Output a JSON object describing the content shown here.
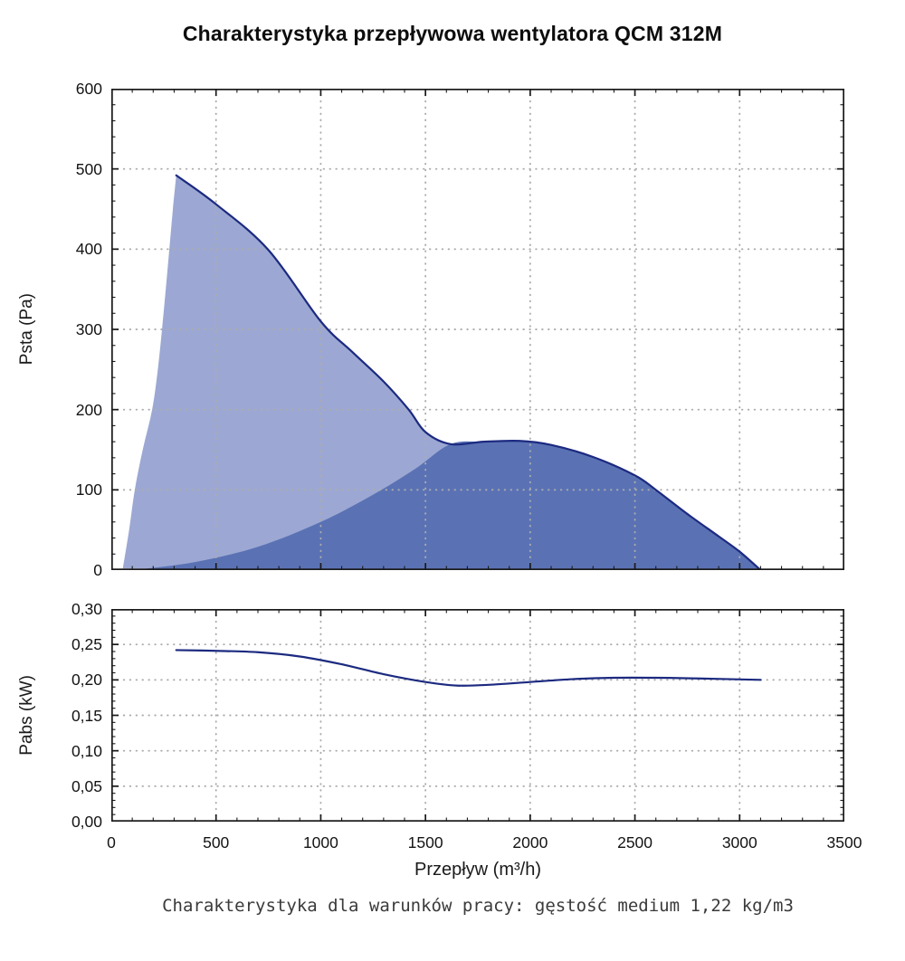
{
  "title": "Charakterystyka przepływowa wentylatora QCM 312M",
  "xlabel": "Przepływ (m³/h)",
  "caption": "Charakterystyka dla warunków pracy: gęstość medium 1,22 kg/m3",
  "style": {
    "area_light": "#9ca8d3",
    "area_dark": "#5a72b4",
    "curve": "#1c2a80",
    "grid": "#acacac",
    "axis": "#1a1a1a",
    "caption_color": "#3a3a3a"
  },
  "chart_data": [
    {
      "name": "psta-vs-flow",
      "type": "area",
      "ylabel": "Psta (Pa)",
      "xlim": [
        0,
        3500
      ],
      "ylim": [
        0,
        600
      ],
      "xticks": [
        0,
        500,
        1000,
        1500,
        2000,
        2500,
        3000,
        3500
      ],
      "xtick_labels": [
        "0",
        "500",
        "1000",
        "1500",
        "2000",
        "2500",
        "3000",
        "3500"
      ],
      "yticks": [
        0,
        100,
        200,
        300,
        400,
        500,
        600
      ],
      "ytick_labels": [
        "0",
        "100",
        "200",
        "300",
        "400",
        "500",
        "600"
      ],
      "x_minor_step": 100,
      "y_minor_step": 20,
      "grid": "dotted",
      "legend": "none",
      "saddle_index": 8,
      "series": [
        {
          "name": "fan-curve-psta",
          "role": "line",
          "points": [
            [
              310,
              492
            ],
            [
              500,
              456
            ],
            [
              750,
              399
            ],
            [
              1000,
              310
            ],
            [
              1150,
              272
            ],
            [
              1300,
              235
            ],
            [
              1420,
              200
            ],
            [
              1500,
              172
            ],
            [
              1620,
              157
            ],
            [
              1780,
              160
            ],
            [
              1950,
              161
            ],
            [
              2100,
              156
            ],
            [
              2300,
              141
            ],
            [
              2500,
              118
            ],
            [
              2600,
              100
            ],
            [
              2750,
              70
            ],
            [
              2900,
              42
            ],
            [
              3000,
              23
            ],
            [
              3100,
              0
            ]
          ]
        },
        {
          "name": "surge-boundary",
          "role": "area-boundary-light",
          "points": [
            [
              55,
              2
            ],
            [
              85,
              50
            ],
            [
              112,
              100
            ],
            [
              150,
              150
            ],
            [
              195,
              200
            ],
            [
              222,
              250
            ],
            [
              242,
              300
            ],
            [
              260,
              350
            ],
            [
              277,
              400
            ],
            [
              294,
              450
            ],
            [
              310,
              492
            ]
          ]
        },
        {
          "name": "system-resistance-parabola",
          "role": "area-boundary-dark",
          "points": [
            [
              140,
              1
            ],
            [
              400,
              10
            ],
            [
              700,
              29
            ],
            [
              1000,
              60
            ],
            [
              1250,
              94
            ],
            [
              1450,
              126
            ],
            [
              1620,
              157
            ]
          ]
        }
      ]
    },
    {
      "name": "pabs-vs-flow",
      "type": "line",
      "ylabel": "Pabs (kW)",
      "xlim": [
        0,
        3500
      ],
      "ylim": [
        0,
        0.3
      ],
      "xticks": [
        0,
        500,
        1000,
        1500,
        2000,
        2500,
        3000,
        3500
      ],
      "xtick_labels": [
        "0",
        "500",
        "1000",
        "1500",
        "2000",
        "2500",
        "3000",
        "3500"
      ],
      "yticks": [
        0,
        0.05,
        0.1,
        0.15,
        0.2,
        0.25,
        0.3
      ],
      "ytick_labels": [
        "0,00",
        "0,05",
        "0,10",
        "0,15",
        "0,20",
        "0,25",
        "0,30"
      ],
      "x_minor_step": 100,
      "y_minor_step": 0.01,
      "grid": "dotted",
      "legend": "none",
      "series": [
        {
          "name": "power-curve-pabs",
          "role": "line",
          "points": [
            [
              310,
              0.242
            ],
            [
              500,
              0.241
            ],
            [
              700,
              0.239
            ],
            [
              900,
              0.233
            ],
            [
              1100,
              0.222
            ],
            [
              1300,
              0.208
            ],
            [
              1500,
              0.197
            ],
            [
              1650,
              0.192
            ],
            [
              1800,
              0.193
            ],
            [
              2000,
              0.197
            ],
            [
              2200,
              0.201
            ],
            [
              2400,
              0.203
            ],
            [
              2600,
              0.203
            ],
            [
              2800,
              0.202
            ],
            [
              3100,
              0.2
            ]
          ]
        }
      ]
    }
  ]
}
